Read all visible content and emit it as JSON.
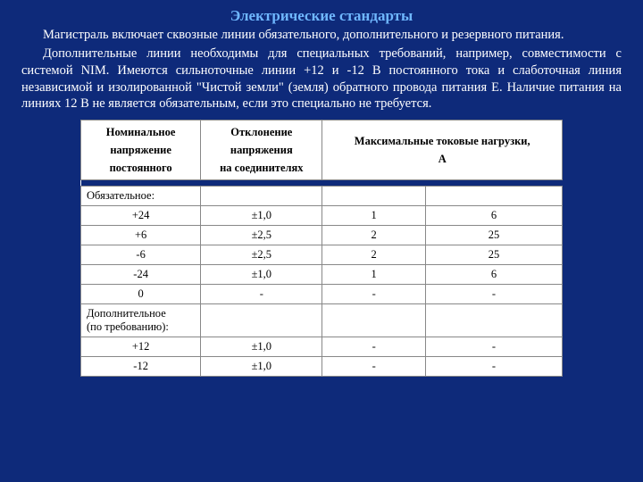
{
  "colors": {
    "background": "#0e2a7a",
    "title": "#6fb7ff",
    "body_text": "#ffffff",
    "table_bg": "#ffffff",
    "table_text": "#000000",
    "table_border": "#888888"
  },
  "typography": {
    "title_fontsize": 17,
    "body_fontsize": 14.5,
    "table_fontsize": 12.5,
    "font_family": "Times New Roman"
  },
  "slide": {
    "title": "Электрические стандарты",
    "para1": "Магистраль включает сквозные линии обязательного, дополнительного и резервного питания.",
    "para2": "Дополнительные линии необходимы для специальных требований, например, совместимости с системой NIM. Имеются сильноточные линии +12 и -12 В постоянного тока и слаботочная линия независимой и изолированной \"Чистой земли\" (земля) обратного провода питания E. Наличие питания на линиях 12 В не является обязательным, если это специально не требуется."
  },
  "table": {
    "headers": {
      "col1_l1": "Номинальное",
      "col1_l2": "напряжение",
      "col1_l3": "постоянного",
      "col2_l1": "Отклонение",
      "col2_l2": "напряжения",
      "col2_l3": "на соединителях",
      "col34_l1": "Максимальные токовые нагрузки,",
      "col34_l2": "А"
    },
    "section1": "Обязательное:",
    "section2_l1": "Дополнительное",
    "section2_l2": "(по требованию):",
    "rows": [
      {
        "v": "+24",
        "tol": "±1,0",
        "c1": "1",
        "c2": "6"
      },
      {
        "v": "+6",
        "tol": "±2,5",
        "c1": "2",
        "c2": "25"
      },
      {
        "v": "-6",
        "tol": "±2,5",
        "c1": "2",
        "c2": "25"
      },
      {
        "v": "-24",
        "tol": "±1,0",
        "c1": "1",
        "c2": "6"
      },
      {
        "v": "0",
        "tol": "-",
        "c1": "-",
        "c2": "-"
      }
    ],
    "rows2": [
      {
        "v": "+12",
        "tol": "±1,0",
        "c1": "-",
        "c2": "-"
      },
      {
        "v": "-12",
        "tol": "±1,0",
        "c1": "-",
        "c2": "-"
      }
    ]
  }
}
